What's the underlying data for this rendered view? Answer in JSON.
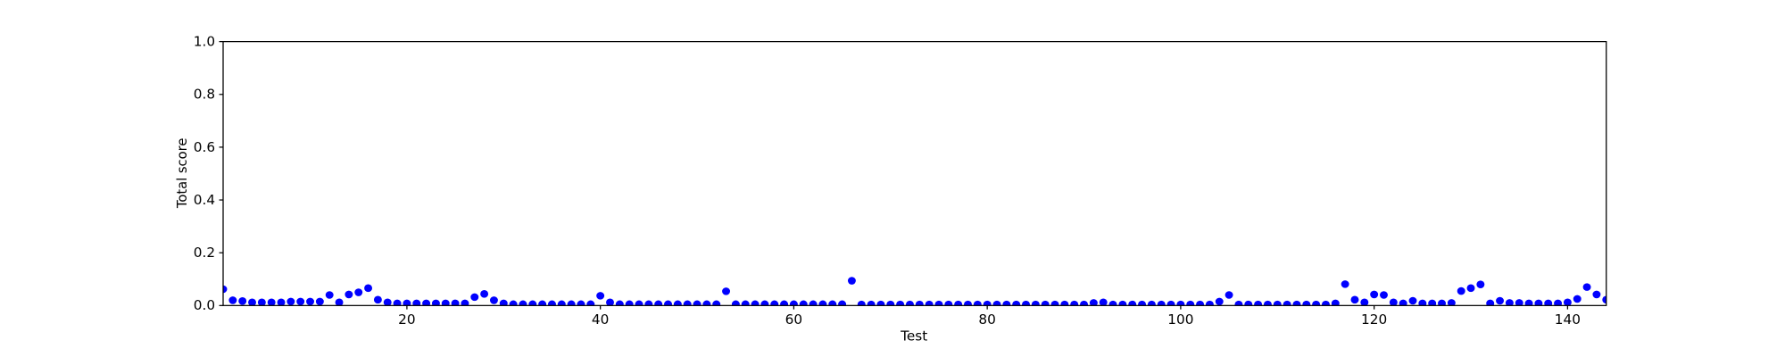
{
  "chart_data": {
    "type": "scatter",
    "xlabel": "Test",
    "ylabel": "Total score",
    "color": "#0000ff",
    "x": [
      1,
      2,
      3,
      4,
      5,
      6,
      7,
      8,
      9,
      10,
      11,
      12,
      13,
      14,
      15,
      16,
      17,
      18,
      19,
      20,
      21,
      22,
      23,
      24,
      25,
      26,
      27,
      28,
      29,
      30,
      31,
      32,
      33,
      34,
      35,
      36,
      37,
      38,
      39,
      40,
      41,
      42,
      43,
      44,
      45,
      46,
      47,
      48,
      49,
      50,
      51,
      52,
      53,
      54,
      55,
      56,
      57,
      58,
      59,
      60,
      61,
      62,
      63,
      64,
      65,
      66,
      67,
      68,
      69,
      70,
      71,
      72,
      73,
      74,
      75,
      76,
      77,
      78,
      79,
      80,
      81,
      82,
      83,
      84,
      85,
      86,
      87,
      88,
      89,
      90,
      91,
      92,
      93,
      94,
      95,
      96,
      97,
      98,
      99,
      100,
      101,
      102,
      103,
      104,
      105,
      106,
      107,
      108,
      109,
      110,
      111,
      112,
      113,
      114,
      115,
      116,
      117,
      118,
      119,
      120,
      121,
      122,
      123,
      124,
      125,
      126,
      127,
      128,
      129,
      130,
      131,
      132,
      133,
      134,
      135,
      136,
      137,
      138,
      139,
      140,
      141,
      142,
      143,
      144
    ],
    "values": [
      0.062,
      0.02,
      0.017,
      0.012,
      0.012,
      0.012,
      0.012,
      0.015,
      0.015,
      0.015,
      0.015,
      0.04,
      0.012,
      0.042,
      0.05,
      0.066,
      0.022,
      0.012,
      0.008,
      0.008,
      0.008,
      0.008,
      0.008,
      0.008,
      0.008,
      0.008,
      0.032,
      0.044,
      0.02,
      0.008,
      0.005,
      0.005,
      0.005,
      0.005,
      0.005,
      0.005,
      0.005,
      0.005,
      0.005,
      0.037,
      0.012,
      0.005,
      0.005,
      0.005,
      0.005,
      0.005,
      0.005,
      0.005,
      0.005,
      0.005,
      0.005,
      0.005,
      0.054,
      0.005,
      0.005,
      0.005,
      0.005,
      0.005,
      0.005,
      0.005,
      0.005,
      0.005,
      0.005,
      0.005,
      0.005,
      0.094,
      0.004,
      0.004,
      0.004,
      0.004,
      0.004,
      0.004,
      0.004,
      0.004,
      0.004,
      0.004,
      0.004,
      0.004,
      0.004,
      0.004,
      0.004,
      0.004,
      0.004,
      0.004,
      0.004,
      0.004,
      0.004,
      0.004,
      0.004,
      0.004,
      0.01,
      0.012,
      0.004,
      0.004,
      0.004,
      0.004,
      0.004,
      0.004,
      0.004,
      0.004,
      0.004,
      0.004,
      0.004,
      0.015,
      0.04,
      0.004,
      0.004,
      0.004,
      0.004,
      0.004,
      0.004,
      0.004,
      0.004,
      0.004,
      0.004,
      0.008,
      0.081,
      0.022,
      0.012,
      0.042,
      0.04,
      0.012,
      0.008,
      0.018,
      0.008,
      0.008,
      0.008,
      0.01,
      0.055,
      0.066,
      0.08,
      0.008,
      0.018,
      0.01,
      0.01,
      0.008,
      0.008,
      0.008,
      0.008,
      0.012,
      0.025,
      0.07,
      0.042,
      0.022
    ],
    "xlim": [
      1,
      144
    ],
    "xticks": [
      20,
      40,
      60,
      80,
      100,
      120,
      140
    ],
    "ylim": [
      0,
      1
    ],
    "yticks": [
      {
        "value": 0,
        "label": "0.0"
      },
      0.2,
      0.4,
      0.6,
      0.8,
      {
        "value": 1,
        "label": "1.0"
      }
    ]
  }
}
